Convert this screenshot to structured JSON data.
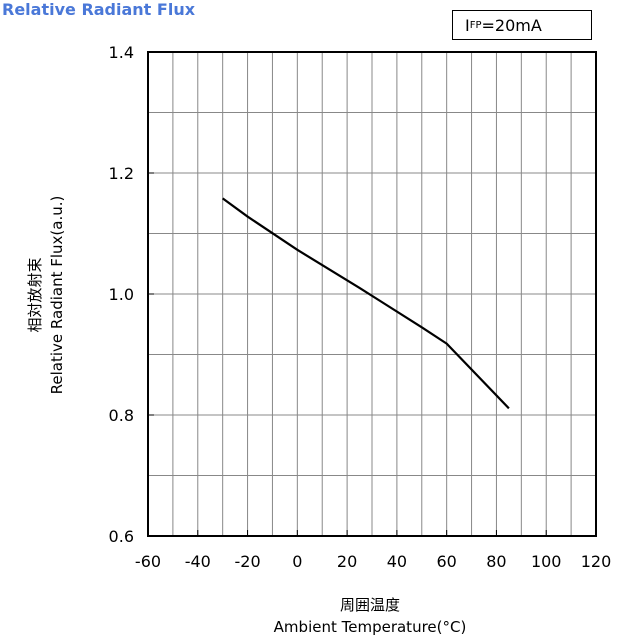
{
  "title": "Relative Radiant Flux",
  "condition": {
    "symbol": "I",
    "subscript": "FP",
    "value": "=20mA"
  },
  "xlabel": {
    "jp": "周囲温度",
    "en": "Ambient Temperature(°C)"
  },
  "ylabel": {
    "jp": "相対放射束",
    "en": "Relative Radiant Flux(a.u.)"
  },
  "chart_data": {
    "type": "line",
    "title": "Relative Radiant Flux",
    "xlabel": "Ambient Temperature(°C)",
    "ylabel": "Relative Radiant Flux(a.u.)",
    "xlim": [
      -60,
      120
    ],
    "ylim": [
      0.6,
      1.4
    ],
    "x_ticks": [
      -60,
      -40,
      -20,
      0,
      20,
      40,
      60,
      80,
      100,
      120
    ],
    "y_ticks": [
      "0.6",
      "0.8",
      "1.0",
      "1.2",
      "1.4"
    ],
    "y_tick_values": [
      0.6,
      0.8,
      1.0,
      1.2,
      1.4
    ],
    "grid": true,
    "series": [
      {
        "x": [
          -30,
          -20,
          0,
          25,
          50,
          60,
          85
        ],
        "y": [
          1.158,
          1.128,
          1.073,
          1.01,
          0.945,
          0.918,
          0.811
        ]
      }
    ]
  }
}
